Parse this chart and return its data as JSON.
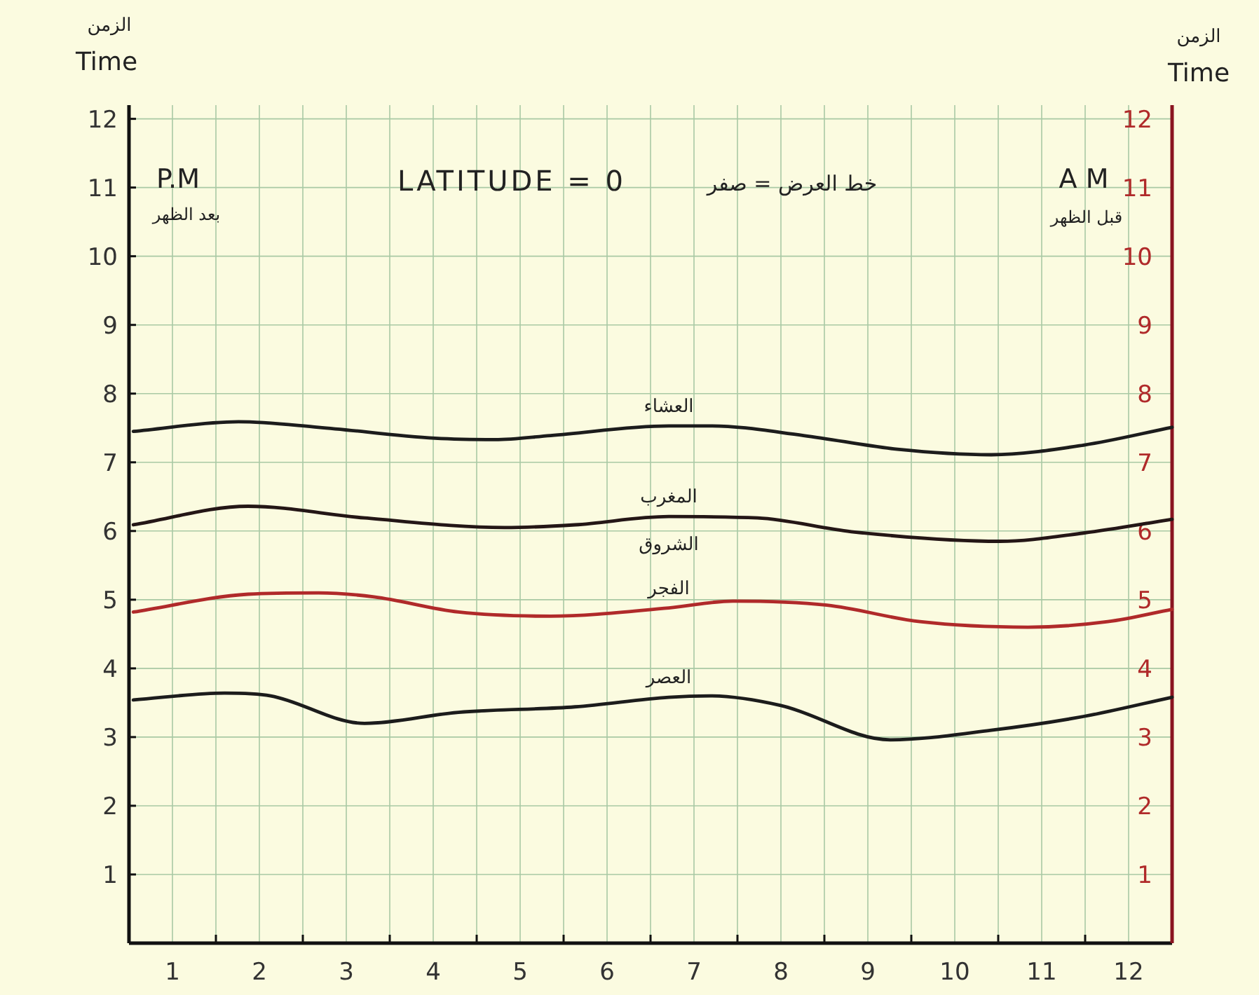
{
  "chart_data": {
    "type": "line",
    "title": "LATITUDE = 0",
    "subtitle": "خط العرض = صفر",
    "ylabel": "Time",
    "y2label": "Time",
    "annotations": [
      "الزمن",
      "الزمن",
      "P.M",
      "بعد الظهر",
      "A M",
      "قبل الظهر",
      {
        "text": "الشروق",
        "x": 6.21,
        "y": 6.21
      }
    ],
    "xlim": [
      0,
      12
    ],
    "xticks": [
      {
        "value": 0.5,
        "label": "1"
      },
      {
        "value": 1,
        "label": null
      },
      {
        "value": 1.5,
        "label": "2"
      },
      {
        "value": 2,
        "label": null
      },
      {
        "value": 2.5,
        "label": "3"
      },
      {
        "value": 3,
        "label": null
      },
      {
        "value": 3.5,
        "label": "4"
      },
      {
        "value": 4,
        "label": null
      },
      {
        "value": 4.5,
        "label": "5"
      },
      {
        "value": 5,
        "label": null
      },
      {
        "value": 5.5,
        "label": "6"
      },
      {
        "value": 6,
        "label": null
      },
      {
        "value": 6.5,
        "label": "7"
      },
      {
        "value": 7,
        "label": null
      },
      {
        "value": 7.5,
        "label": "8"
      },
      {
        "value": 8,
        "label": null
      },
      {
        "value": 8.5,
        "label": "9"
      },
      {
        "value": 9,
        "label": null
      },
      {
        "value": 9.5,
        "label": "10"
      },
      {
        "value": 10,
        "label": null
      },
      {
        "value": 10.5,
        "label": "11"
      },
      {
        "value": 11,
        "label": null
      },
      {
        "value": 11.5,
        "label": "12"
      }
    ],
    "ylim": [
      0,
      12.2
    ],
    "yticks": [
      1,
      2,
      3,
      4,
      5,
      6,
      7,
      8,
      9,
      10,
      11,
      12
    ],
    "y2lim": [
      0,
      12.2
    ],
    "y2ticks": [
      1,
      2,
      3,
      4,
      5,
      6,
      7,
      8,
      9,
      10,
      11,
      12
    ],
    "grid": true,
    "marker": "none",
    "line_style": "solid",
    "series": [
      {
        "name": "العشاء",
        "color": "#1c1c1c",
        "x": [
          0.05,
          1.26,
          2.18,
          3.52,
          4.21,
          4.85,
          6.21,
          6.69,
          7.76,
          8.84,
          9.92,
          10.98,
          12.0
        ],
        "values": [
          7.45,
          7.59,
          7.51,
          7.35,
          7.33,
          7.39,
          7.53,
          7.53,
          7.39,
          7.19,
          7.11,
          7.25,
          7.51
        ]
      },
      {
        "name": "المغرب",
        "color": "#241616",
        "x": [
          0.05,
          1.37,
          2.71,
          4.32,
          5.13,
          6.21,
          7.23,
          8.31,
          10.02,
          10.98,
          12.0
        ],
        "values": [
          6.09,
          6.36,
          6.19,
          6.05,
          6.09,
          6.21,
          6.19,
          5.99,
          5.85,
          5.97,
          6.17
        ]
      },
      {
        "name": "الفجر",
        "color": "#b02a2a",
        "axis": "y2",
        "x": [
          0.05,
          1.37,
          2.18,
          2.82,
          3.79,
          4.85,
          6.21,
          6.95,
          8.03,
          9.1,
          10.34,
          11.26,
          12.0
        ],
        "values": [
          4.82,
          5.08,
          5.1,
          5.04,
          4.82,
          4.76,
          4.88,
          4.98,
          4.92,
          4.68,
          4.6,
          4.68,
          4.86
        ]
      },
      {
        "name": "العصر",
        "color": "#1c1c1c",
        "x": [
          0.05,
          1.1,
          1.63,
          2.71,
          3.79,
          5.13,
          6.21,
          6.69,
          7.5,
          8.76,
          9.92,
          10.98,
          12.0
        ],
        "values": [
          3.54,
          3.64,
          3.6,
          3.2,
          3.36,
          3.44,
          3.58,
          3.6,
          3.46,
          2.96,
          3.1,
          3.3,
          3.58
        ]
      }
    ]
  }
}
